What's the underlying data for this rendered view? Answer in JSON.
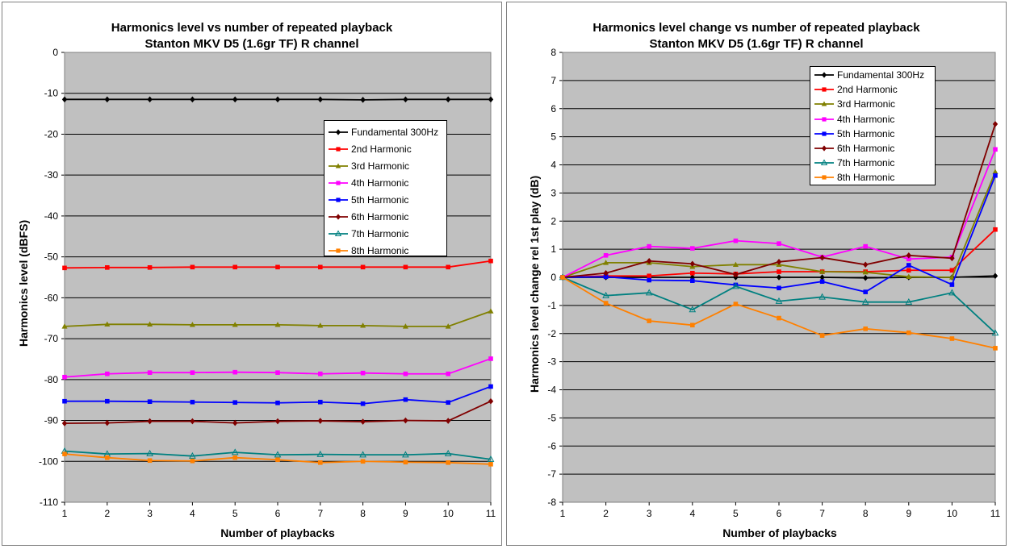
{
  "chart_data": [
    {
      "type": "line",
      "title": "Harmonics level vs number of repeated playback",
      "subtitle": "Stanton MKV D5 (1.6gr TF) R channel",
      "xlabel": "Number of  playbacks",
      "ylabel": "Harmonics level (dBFS)",
      "x": [
        1,
        2,
        3,
        4,
        5,
        6,
        7,
        8,
        9,
        10,
        11
      ],
      "ylim": [
        -110,
        0
      ],
      "ytick_step": 10,
      "grid": true,
      "plot_background": "#c0c0c0",
      "legend_position": "right-center",
      "series": [
        {
          "name": "Fundamental 300Hz",
          "color": "#000000",
          "marker": "diamond",
          "values": [
            -11.5,
            -11.5,
            -11.5,
            -11.5,
            -11.5,
            -11.5,
            -11.5,
            -11.6,
            -11.5,
            -11.5,
            -11.5
          ]
        },
        {
          "name": "2nd Harmonic",
          "color": "#ff0000",
          "marker": "square",
          "values": [
            -52.7,
            -52.6,
            -52.6,
            -52.5,
            -52.5,
            -52.5,
            -52.5,
            -52.5,
            -52.5,
            -52.5,
            -51.0
          ]
        },
        {
          "name": "3rd Harmonic",
          "color": "#808000",
          "marker": "triangle",
          "values": [
            -67.0,
            -66.5,
            -66.5,
            -66.6,
            -66.6,
            -66.6,
            -66.8,
            -66.8,
            -67.0,
            -67.0,
            -63.3
          ]
        },
        {
          "name": "4th Harmonic",
          "color": "#ff00ff",
          "marker": "square",
          "values": [
            -79.4,
            -78.6,
            -78.3,
            -78.3,
            -78.2,
            -78.3,
            -78.6,
            -78.4,
            -78.6,
            -78.6,
            -74.9
          ]
        },
        {
          "name": "5th Harmonic",
          "color": "#0000ff",
          "marker": "square",
          "values": [
            -85.3,
            -85.3,
            -85.4,
            -85.5,
            -85.6,
            -85.7,
            -85.5,
            -85.9,
            -84.9,
            -85.6,
            -81.7
          ]
        },
        {
          "name": "6th Harmonic",
          "color": "#800000",
          "marker": "diamond",
          "values": [
            -90.7,
            -90.6,
            -90.2,
            -90.2,
            -90.6,
            -90.2,
            -90.1,
            -90.3,
            -90.0,
            -90.1,
            -85.3
          ]
        },
        {
          "name": "7th Harmonic",
          "color": "#008080",
          "marker": "triangle-open",
          "values": [
            -97.5,
            -98.2,
            -98.1,
            -98.7,
            -97.8,
            -98.4,
            -98.3,
            -98.4,
            -98.4,
            -98.1,
            -99.5
          ]
        },
        {
          "name": "8th Harmonic",
          "color": "#ff8000",
          "marker": "square",
          "values": [
            -98.2,
            -99.1,
            -99.8,
            -99.9,
            -99.1,
            -99.6,
            -100.3,
            -100.0,
            -100.2,
            -100.3,
            -100.7
          ]
        }
      ]
    },
    {
      "type": "line",
      "title": "Harmonics level change vs number of repeated playback",
      "subtitle": "Stanton MKV D5 (1.6gr TF) R channel",
      "xlabel": "Number of playbacks",
      "ylabel": "Harmonics level change rel 1st play (dB)",
      "x": [
        1,
        2,
        3,
        4,
        5,
        6,
        7,
        8,
        9,
        10,
        11
      ],
      "ylim": [
        -8,
        8
      ],
      "ytick_step": 1,
      "grid": true,
      "plot_background": "#c0c0c0",
      "legend_position": "top-right",
      "series": [
        {
          "name": "Fundamental 300Hz",
          "color": "#000000",
          "marker": "diamond",
          "values": [
            0,
            0,
            0,
            0,
            0,
            0,
            0,
            -0.02,
            0,
            0,
            0.05
          ]
        },
        {
          "name": "2nd Harmonic",
          "color": "#ff0000",
          "marker": "square",
          "values": [
            0,
            0.05,
            0.05,
            0.15,
            0.12,
            0.2,
            0.2,
            0.2,
            0.25,
            0.25,
            1.7
          ]
        },
        {
          "name": "3rd Harmonic",
          "color": "#808000",
          "marker": "triangle",
          "values": [
            0,
            0.52,
            0.52,
            0.38,
            0.45,
            0.45,
            0.2,
            0.18,
            0.02,
            0.0,
            3.75
          ]
        },
        {
          "name": "4th Harmonic",
          "color": "#ff00ff",
          "marker": "square",
          "values": [
            0,
            0.78,
            1.1,
            1.03,
            1.3,
            1.2,
            0.72,
            1.1,
            0.65,
            0.72,
            4.55
          ]
        },
        {
          "name": "5th Harmonic",
          "color": "#0000ff",
          "marker": "square",
          "values": [
            0,
            0.02,
            -0.1,
            -0.12,
            -0.27,
            -0.38,
            -0.15,
            -0.52,
            0.43,
            -0.26,
            3.62
          ]
        },
        {
          "name": "6th Harmonic",
          "color": "#800000",
          "marker": "diamond",
          "values": [
            0,
            0.15,
            0.58,
            0.48,
            0.1,
            0.55,
            0.7,
            0.45,
            0.78,
            0.68,
            5.45
          ]
        },
        {
          "name": "7th Harmonic",
          "color": "#008080",
          "marker": "triangle-open",
          "values": [
            0,
            -0.65,
            -0.55,
            -1.15,
            -0.32,
            -0.85,
            -0.7,
            -0.88,
            -0.88,
            -0.55,
            -1.98
          ]
        },
        {
          "name": "8th Harmonic",
          "color": "#ff8000",
          "marker": "square",
          "values": [
            0,
            -0.92,
            -1.55,
            -1.7,
            -0.95,
            -1.45,
            -2.07,
            -1.83,
            -1.97,
            -2.18,
            -2.52
          ]
        }
      ]
    }
  ]
}
